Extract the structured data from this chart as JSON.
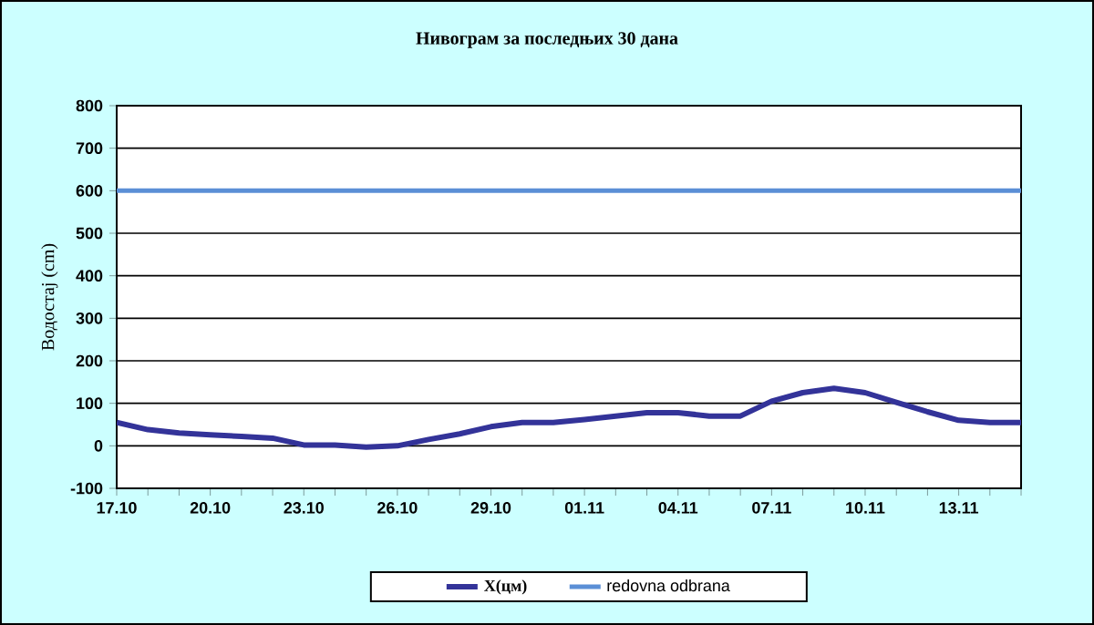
{
  "chart_data": {
    "type": "line",
    "title": "Нивограм за последњих 30 дана",
    "ylabel": "Водостај (cm)",
    "categories": [
      "17.10",
      null,
      null,
      "20.10",
      null,
      null,
      "23.10",
      null,
      null,
      "26.10",
      null,
      null,
      "29.10",
      null,
      null,
      "01.11",
      null,
      null,
      "04.11",
      null,
      null,
      "07.11",
      null,
      null,
      "10.11",
      null,
      null,
      "13.11",
      null,
      null
    ],
    "series": [
      {
        "name": "X(цм)",
        "color": "#333399",
        "values": [
          55,
          38,
          30,
          26,
          22,
          18,
          2,
          2,
          -3,
          0,
          15,
          28,
          45,
          55,
          55,
          62,
          70,
          78,
          78,
          70,
          70,
          105,
          125,
          135,
          125,
          102,
          80,
          60,
          55,
          55
        ]
      }
    ],
    "ref_lines": [
      {
        "axis": "y",
        "value": 600,
        "label": "redovna odbrana",
        "color": "#5b8fd6"
      }
    ],
    "ylim": [
      -100,
      800
    ],
    "yticks": [
      -100,
      0,
      100,
      200,
      300,
      400,
      500,
      600,
      700,
      800
    ],
    "grid": "y",
    "legend": "bottom",
    "marker": "none",
    "line_style": "solid"
  }
}
